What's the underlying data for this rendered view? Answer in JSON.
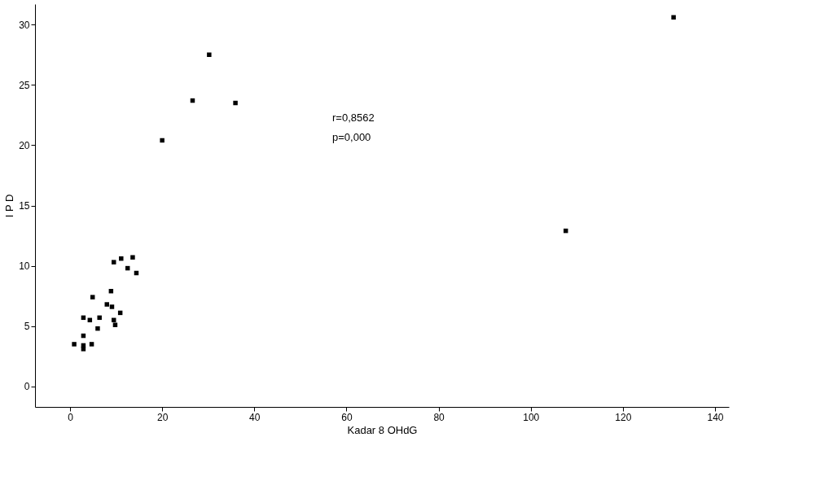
{
  "chart_data": {
    "type": "scatter",
    "xlabel": "Kadar 8 OHdG",
    "ylabel": "I P D",
    "x": [
      30.2,
      26.6,
      35.9,
      20,
      131,
      107.6,
      9.5,
      11.1,
      13.6,
      12.5,
      14.4,
      8.9,
      4.9,
      8,
      9.1,
      10.9,
      2.9,
      4.3,
      6.4,
      9.5,
      9.8,
      6,
      2.9,
      0.9,
      2.9,
      2.9,
      4.7
    ],
    "series": [
      {
        "color": "#000000",
        "values": [
          27.5,
          23.7,
          23.5,
          20.4,
          30.6,
          12.9,
          10.3,
          10.6,
          10.7,
          9.8,
          9.4,
          7.9,
          7.4,
          6.8,
          6.6,
          6.1,
          5.7,
          5.5,
          5.7,
          5.5,
          5.1,
          4.8,
          4.2,
          3.5,
          3.4,
          3.1,
          3.5
        ]
      }
    ],
    "xlim": [
      -7.6,
      143
    ],
    "ylim": [
      -1.7,
      31.7
    ],
    "xticks": [
      0,
      20,
      40,
      60,
      80,
      100,
      120,
      140
    ],
    "yticks": [
      0,
      5,
      10,
      15,
      20,
      25,
      30
    ],
    "grid": false,
    "marker": "square",
    "annotations": [
      "r=0,8562",
      "p=0,000"
    ]
  }
}
